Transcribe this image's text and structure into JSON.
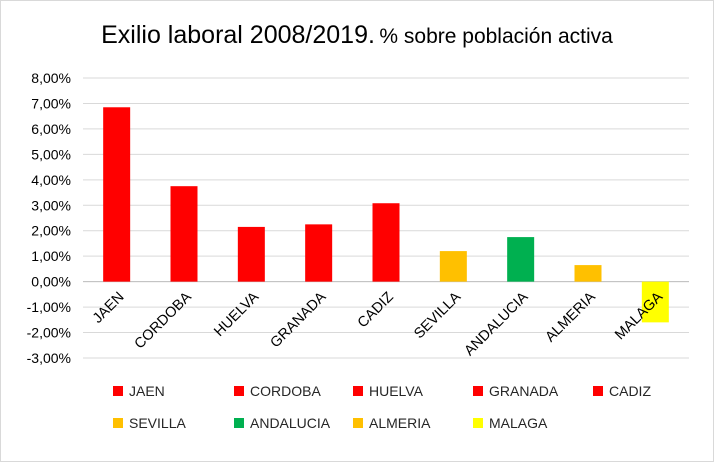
{
  "chart_data": {
    "type": "bar",
    "title": "Exilio laboral 2008/2019.",
    "subtitle": "% sobre población activa",
    "categories": [
      "JAEN",
      "CORDOBA",
      "HUELVA",
      "GRANADA",
      "CADIZ",
      "SEVILLA",
      "ANDALUCIA",
      "ALMERIA",
      "MALAGA"
    ],
    "values": [
      6.85,
      3.75,
      2.15,
      2.25,
      3.08,
      1.2,
      1.75,
      0.65,
      -1.6
    ],
    "bar_colors": [
      "#ff0000",
      "#ff0000",
      "#ff0000",
      "#ff0000",
      "#ff0000",
      "#ffc000",
      "#00b050",
      "#ffc000",
      "#ffff00"
    ],
    "ylim": [
      -3,
      8
    ],
    "y_ticks": [
      "8,00%",
      "7,00%",
      "6,00%",
      "5,00%",
      "4,00%",
      "3,00%",
      "2,00%",
      "1,00%",
      "0,00%",
      "-1,00%",
      "-2,00%",
      "-3,00%"
    ],
    "grid": true,
    "legend_position": "bottom",
    "legend": [
      {
        "label": "JAEN",
        "color": "#ff0000"
      },
      {
        "label": "CORDOBA",
        "color": "#ff0000"
      },
      {
        "label": "HUELVA",
        "color": "#ff0000"
      },
      {
        "label": "GRANADA",
        "color": "#ff0000"
      },
      {
        "label": "CADIZ",
        "color": "#ff0000"
      },
      {
        "label": "SEVILLA",
        "color": "#ffc000"
      },
      {
        "label": "ANDALUCIA",
        "color": "#00b050"
      },
      {
        "label": "ALMERIA",
        "color": "#ffc000"
      },
      {
        "label": "MALAGA",
        "color": "#ffff00"
      }
    ]
  }
}
